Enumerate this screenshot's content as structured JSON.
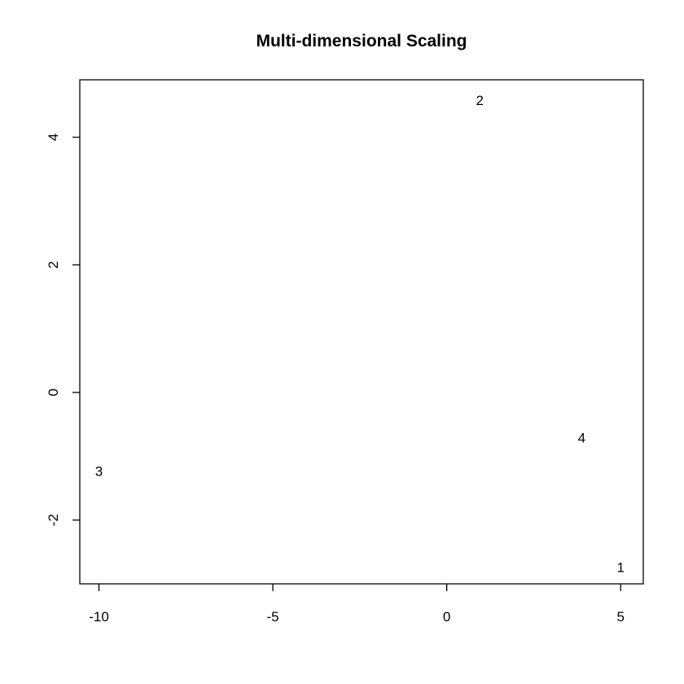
{
  "chart_data": {
    "type": "scatter",
    "title": "Multi-dimensional Scaling",
    "xlabel": "",
    "ylabel": "",
    "xlim": [
      -10.55,
      5.65
    ],
    "ylim": [
      -3.0,
      4.9
    ],
    "grid": false,
    "legend": "none",
    "x_ticks": [
      -10,
      -5,
      0,
      5
    ],
    "x_tick_labels": [
      "-10",
      "-5",
      "0",
      "5"
    ],
    "y_ticks": [
      -2,
      0,
      2,
      4
    ],
    "y_tick_labels": [
      "-2",
      "0",
      "2",
      "4"
    ],
    "points": [
      {
        "label": "1",
        "x": 5.0,
        "y": -2.74
      },
      {
        "label": "2",
        "x": 0.95,
        "y": 4.58
      },
      {
        "label": "3",
        "x": -10.0,
        "y": -1.23
      },
      {
        "label": "4",
        "x": 3.88,
        "y": -0.71
      }
    ],
    "colors": {
      "text": "#000000",
      "frame": "#000000",
      "background": "#ffffff"
    }
  }
}
